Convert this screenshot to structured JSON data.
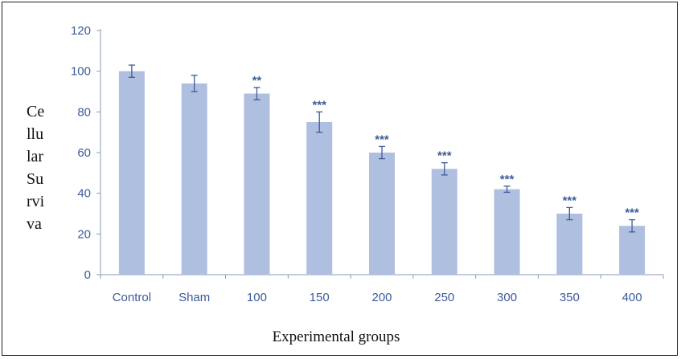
{
  "chart_data": {
    "type": "bar",
    "categories": [
      "Control",
      "Sham",
      "100",
      "150",
      "200",
      "250",
      "300",
      "350",
      "400"
    ],
    "values": [
      100,
      94,
      89,
      75,
      60,
      52,
      42,
      30,
      24
    ],
    "errors": [
      3,
      4,
      3,
      5,
      3,
      3,
      1.5,
      3,
      3
    ],
    "significance": [
      "",
      "",
      "**",
      "***",
      "***",
      "***",
      "***",
      "***",
      "***"
    ],
    "yticks": [
      0,
      20,
      40,
      60,
      80,
      100,
      120
    ],
    "ylim": [
      0,
      120
    ],
    "ylabel_lines": [
      "Ce",
      "llu",
      "lar",
      "Su",
      "rvi",
      "va"
    ],
    "xlabel": "Experimental groups",
    "grid": false,
    "colors": {
      "bar": "#afbfdf",
      "error": "#3d5a99",
      "axis_text": "#3d5a99",
      "axis_line": "#8a9ab8"
    }
  }
}
